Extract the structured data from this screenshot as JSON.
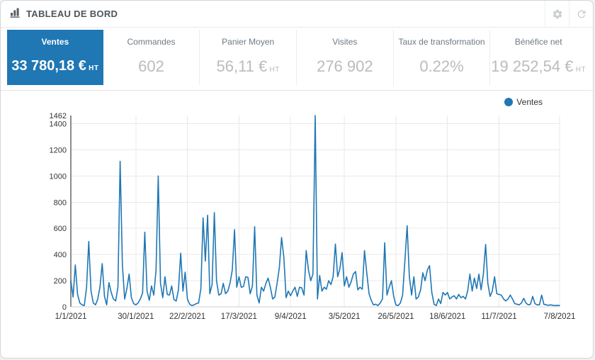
{
  "header": {
    "title": "TABLEAU DE BORD",
    "buttons": [
      {
        "name": "settings",
        "icon": "gear-icon"
      },
      {
        "name": "refresh",
        "icon": "refresh-icon"
      }
    ]
  },
  "kpis": [
    {
      "label": "Ventes",
      "value": "33 780,18 €",
      "suffix": "HT",
      "active": true
    },
    {
      "label": "Commandes",
      "value": "602",
      "suffix": "",
      "active": false
    },
    {
      "label": "Panier Moyen",
      "value": "56,11 €",
      "suffix": "HT",
      "active": false
    },
    {
      "label": "Visites",
      "value": "276 902",
      "suffix": "",
      "active": false
    },
    {
      "label": "Taux de transformation",
      "value": "0.22%",
      "suffix": "",
      "active": false
    },
    {
      "label": "Bénéfice net",
      "value": "19 252,54 €",
      "suffix": "HT",
      "active": false
    }
  ],
  "chart_data": {
    "type": "line",
    "title": "Ventes",
    "legend_position": "top-right",
    "grid": true,
    "x_unit": "day",
    "x_start_date": "1/1/2021",
    "x_tick_labels": [
      "1/1/2021",
      "30/1/2021",
      "22/2/2021",
      "17/3/2021",
      "9/4/2021",
      "3/5/2021",
      "26/5/2021",
      "18/6/2021",
      "11/7/2021",
      "7/8/2021"
    ],
    "y_ticks": [
      0,
      200,
      400,
      600,
      800,
      1000,
      1200,
      1400
    ],
    "y_max": 1462,
    "ylim": [
      0,
      1462
    ],
    "series": [
      {
        "name": "Ventes",
        "color": "#1f77b4",
        "values_daily": [
          200,
          75,
          320,
          95,
          30,
          15,
          10,
          150,
          500,
          120,
          30,
          15,
          60,
          150,
          330,
          80,
          15,
          185,
          110,
          60,
          45,
          150,
          1113,
          320,
          60,
          140,
          250,
          70,
          25,
          15,
          30,
          60,
          105,
          570,
          120,
          50,
          160,
          90,
          280,
          1000,
          180,
          70,
          230,
          95,
          90,
          160,
          55,
          45,
          130,
          410,
          120,
          265,
          60,
          20,
          10,
          15,
          25,
          30,
          140,
          680,
          350,
          700,
          100,
          170,
          720,
          200,
          90,
          100,
          180,
          100,
          120,
          180,
          280,
          590,
          150,
          230,
          150,
          155,
          230,
          225,
          100,
          160,
          613,
          90,
          30,
          150,
          120,
          180,
          220,
          150,
          60,
          75,
          180,
          300,
          530,
          380,
          70,
          120,
          85,
          120,
          150,
          80,
          150,
          145,
          90,
          430,
          280,
          200,
          250,
          1462,
          60,
          240,
          120,
          150,
          135,
          200,
          170,
          230,
          480,
          230,
          290,
          415,
          160,
          230,
          150,
          190,
          250,
          270,
          130,
          150,
          135,
          430,
          260,
          100,
          50,
          15,
          20,
          10,
          30,
          60,
          490,
          90,
          150,
          200,
          80,
          15,
          10,
          30,
          90,
          350,
          620,
          230,
          90,
          230,
          60,
          75,
          130,
          260,
          200,
          280,
          315,
          110,
          20,
          10,
          60,
          25,
          110,
          90,
          110,
          60,
          75,
          85,
          60,
          95,
          70,
          80,
          60,
          120,
          250,
          120,
          220,
          140,
          250,
          130,
          250,
          477,
          180,
          80,
          120,
          230,
          100,
          95,
          90,
          60,
          45,
          60,
          90,
          60,
          25,
          20,
          15,
          30,
          65,
          30,
          15,
          20,
          80,
          25,
          15,
          15,
          90,
          20,
          15,
          12,
          15,
          12,
          10,
          12,
          10
        ]
      }
    ]
  },
  "colors": {
    "accent_blue": "#1f77b4",
    "grid_line": "#e8e8e8",
    "axis_line": "#8c8c8c",
    "tick_text": "#333333"
  }
}
